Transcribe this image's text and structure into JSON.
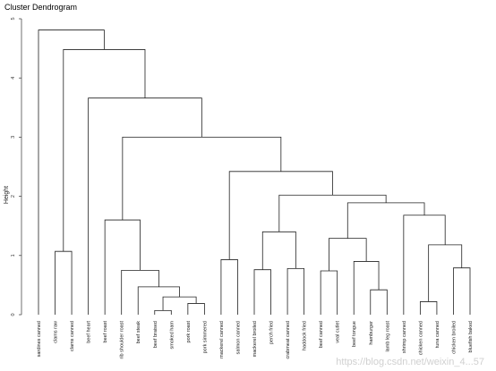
{
  "chart_data": {
    "type": "dendrogram",
    "title": "Cluster Dendrogram",
    "ylabel": "Height",
    "xlabel": "",
    "ylim": [
      0,
      5
    ],
    "yticks": [
      "0",
      "1",
      "2",
      "3",
      "4",
      "5"
    ],
    "grid": false,
    "watermark": "https://blog.csdn.net/weixin_4...57",
    "leaves": [
      "sardines canned",
      "clams raw",
      "clams canned",
      "beef heart",
      "beef roast",
      "rib shoulder roast",
      "beef steak",
      "beef braised",
      "smoked ham",
      "pork roast",
      "pork simmered",
      "mackerel canned",
      "salmon canned",
      "mackerel broiled",
      "perch fried",
      "crabmeat canned",
      "haddock fried",
      "beef canned",
      "veal cutlet",
      "beef tongue",
      "hamburger",
      "lamb leg roast",
      "shrimp canned",
      "chicken canned",
      "tuna canned",
      "chicken broiled",
      "bluefish baked"
    ],
    "merges": [
      {
        "left": "L7",
        "right": "L8",
        "height": 0.07
      },
      {
        "left": "L9",
        "right": "L10",
        "height": 0.19
      },
      {
        "left": "M0",
        "right": "M1",
        "height": 0.3
      },
      {
        "left": "L6",
        "right": "M2",
        "height": 0.47
      },
      {
        "left": "L5",
        "right": "M3",
        "height": 0.75
      },
      {
        "left": "L4",
        "right": "M4",
        "height": 1.6
      },
      {
        "left": "L11",
        "right": "L12",
        "height": 0.93
      },
      {
        "left": "L13",
        "right": "L14",
        "height": 0.76
      },
      {
        "left": "L15",
        "right": "L16",
        "height": 0.78
      },
      {
        "left": "M7",
        "right": "M8",
        "height": 1.4
      },
      {
        "left": "L17",
        "right": "L18",
        "height": 0.74
      },
      {
        "left": "L20",
        "right": "L21",
        "height": 0.42
      },
      {
        "left": "L19",
        "right": "M11",
        "height": 0.9
      },
      {
        "left": "M10",
        "right": "M12",
        "height": 1.29
      },
      {
        "left": "L23",
        "right": "L24",
        "height": 0.22
      },
      {
        "left": "L25",
        "right": "L26",
        "height": 0.79
      },
      {
        "left": "M14",
        "right": "M15",
        "height": 1.18
      },
      {
        "left": "L22",
        "right": "M16",
        "height": 1.68
      },
      {
        "left": "M13",
        "right": "M17",
        "height": 1.89
      },
      {
        "left": "M9",
        "right": "M18",
        "height": 2.02
      },
      {
        "left": "M6",
        "right": "M19",
        "height": 2.42
      },
      {
        "left": "M5",
        "right": "M20",
        "height": 3.0
      },
      {
        "left": "L3",
        "right": "M21",
        "height": 3.66
      },
      {
        "left": "L1",
        "right": "L2",
        "height": 1.07
      },
      {
        "left": "M23",
        "right": "M22",
        "height": 4.48
      },
      {
        "left": "L0",
        "right": "M24",
        "height": 4.81
      }
    ]
  }
}
